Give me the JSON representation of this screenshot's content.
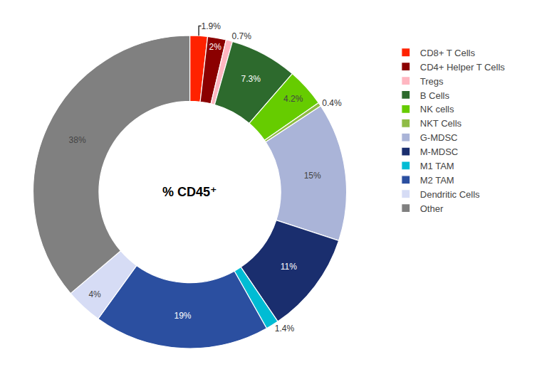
{
  "chart_data": {
    "type": "pie",
    "categories": [
      "CD8+ T Cells",
      "CD4+ Helper T Cells",
      "Tregs",
      "B Cells",
      "NK cells",
      "NKT Cells",
      "G-MDSC",
      "M-MDSC",
      "M1 TAM",
      "M2 TAM",
      "Dendritic Cells",
      "Other"
    ],
    "values": [
      1.9,
      2.0,
      0.7,
      7.3,
      4.2,
      0.4,
      15.0,
      11.0,
      1.4,
      19.0,
      4.0,
      38.0
    ],
    "value_labels": [
      "1.9%",
      "2%",
      "0.7%",
      "7.3%",
      "4.2%",
      "0.4%",
      "15%",
      "11%",
      "1.4%",
      "19%",
      "4%",
      "38%"
    ],
    "colors": [
      "#ff2200",
      "#8b0000",
      "#ffb6c1",
      "#2d6a2d",
      "#66cc00",
      "#8fbc45",
      "#aab4d8",
      "#1a2e6e",
      "#00bcd4",
      "#2b4fa0",
      "#d6dcf5",
      "#808080"
    ],
    "annotations": [
      "% CD45⁺"
    ],
    "data_labels": true,
    "legend": "right"
  }
}
